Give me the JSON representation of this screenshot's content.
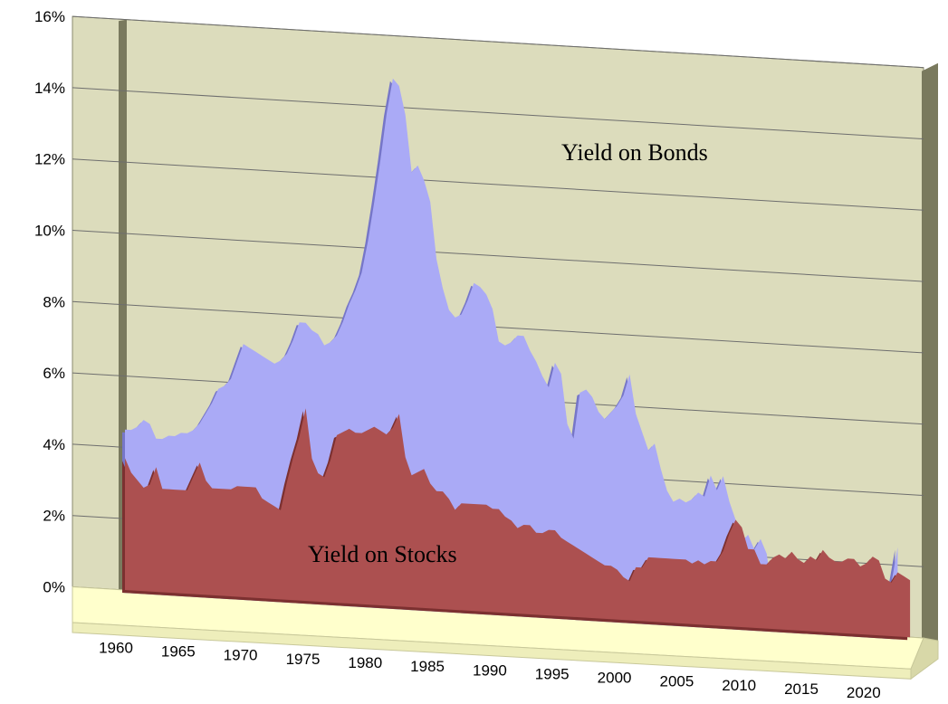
{
  "colors": {
    "wall": "#dcdcbc",
    "wall_side": "#7a7a5e",
    "floor": "#ffffcc",
    "floor_edge": "#c8c89a",
    "bonds_fill": "#aaaaf6",
    "bonds_edge": "#7676c8",
    "stocks_fill": "#ac5050",
    "stocks_edge": "#7c3030",
    "gridline": "#6e6e6e"
  },
  "chart_data": {
    "type": "area",
    "view": "3d",
    "x_label_years": [
      1960,
      1965,
      1970,
      1975,
      1980,
      1985,
      1990,
      1995,
      2000,
      2005,
      2010,
      2015,
      2020
    ],
    "ylim": [
      0,
      16
    ],
    "y_ticks": [
      0,
      2,
      4,
      6,
      8,
      10,
      12,
      14,
      16
    ],
    "y_tick_labels": [
      "0%",
      "2%",
      "4%",
      "6%",
      "8%",
      "10%",
      "12%",
      "14%",
      "16%"
    ],
    "grid": true,
    "annotations": {
      "bonds": "Yield on Bonds",
      "stocks": "Yield on Stocks"
    },
    "series": [
      {
        "key": "bonds",
        "points": [
          [
            1960.0,
            4.5
          ],
          [
            1960.5,
            4.5
          ],
          [
            1961.0,
            4.6
          ],
          [
            1961.5,
            4.8
          ],
          [
            1962.0,
            4.7
          ],
          [
            1962.5,
            4.3
          ],
          [
            1963.0,
            4.3
          ],
          [
            1963.5,
            4.4
          ],
          [
            1964.0,
            4.4
          ],
          [
            1964.5,
            4.5
          ],
          [
            1965.0,
            4.5
          ],
          [
            1965.5,
            4.6
          ],
          [
            1966.0,
            4.8
          ],
          [
            1966.5,
            5.1
          ],
          [
            1967.0,
            5.4
          ],
          [
            1967.5,
            5.8
          ],
          [
            1968.0,
            5.9
          ],
          [
            1968.5,
            6.1
          ],
          [
            1969.0,
            6.6
          ],
          [
            1969.5,
            7.1
          ],
          [
            1970.0,
            7.0
          ],
          [
            1970.5,
            6.9
          ],
          [
            1971.0,
            6.8
          ],
          [
            1971.5,
            6.7
          ],
          [
            1972.0,
            6.6
          ],
          [
            1972.5,
            6.7
          ],
          [
            1973.0,
            6.9
          ],
          [
            1973.5,
            7.3
          ],
          [
            1974.0,
            7.8
          ],
          [
            1974.5,
            7.8
          ],
          [
            1975.0,
            7.6
          ],
          [
            1975.5,
            7.5
          ],
          [
            1976.0,
            7.2
          ],
          [
            1976.5,
            7.3
          ],
          [
            1977.0,
            7.5
          ],
          [
            1977.5,
            7.9
          ],
          [
            1978.0,
            8.4
          ],
          [
            1978.5,
            8.8
          ],
          [
            1979.0,
            9.3
          ],
          [
            1979.5,
            10.2
          ],
          [
            1980.0,
            11.3
          ],
          [
            1980.5,
            12.5
          ],
          [
            1981.0,
            13.8
          ],
          [
            1981.5,
            14.8
          ],
          [
            1982.0,
            14.6
          ],
          [
            1982.5,
            13.8
          ],
          [
            1983.0,
            12.2
          ],
          [
            1983.5,
            12.4
          ],
          [
            1984.0,
            12.0
          ],
          [
            1984.5,
            11.4
          ],
          [
            1985.0,
            9.8
          ],
          [
            1985.5,
            9.0
          ],
          [
            1986.0,
            8.4
          ],
          [
            1986.5,
            8.2
          ],
          [
            1987.0,
            8.3
          ],
          [
            1987.5,
            8.7
          ],
          [
            1988.0,
            9.2
          ],
          [
            1988.5,
            9.1
          ],
          [
            1989.0,
            8.9
          ],
          [
            1989.5,
            8.5
          ],
          [
            1990.0,
            7.6
          ],
          [
            1990.5,
            7.5
          ],
          [
            1991.0,
            7.6
          ],
          [
            1991.5,
            7.8
          ],
          [
            1992.0,
            7.8
          ],
          [
            1992.5,
            7.4
          ],
          [
            1993.0,
            7.1
          ],
          [
            1993.5,
            6.7
          ],
          [
            1994.0,
            6.4
          ],
          [
            1994.5,
            7.1
          ],
          [
            1995.0,
            6.8
          ],
          [
            1995.5,
            5.4
          ],
          [
            1996.0,
            5.0
          ],
          [
            1996.5,
            6.3
          ],
          [
            1997.0,
            6.4
          ],
          [
            1997.5,
            6.2
          ],
          [
            1998.0,
            5.8
          ],
          [
            1998.5,
            5.6
          ],
          [
            1999.0,
            5.8
          ],
          [
            1999.5,
            6.0
          ],
          [
            2000.0,
            6.3
          ],
          [
            2000.5,
            6.9
          ],
          [
            2001.0,
            5.8
          ],
          [
            2001.5,
            5.3
          ],
          [
            2002.0,
            4.8
          ],
          [
            2002.5,
            5.0
          ],
          [
            2003.0,
            4.3
          ],
          [
            2003.5,
            3.7
          ],
          [
            2004.0,
            3.4
          ],
          [
            2004.5,
            3.5
          ],
          [
            2005.0,
            3.4
          ],
          [
            2005.5,
            3.5
          ],
          [
            2006.0,
            3.7
          ],
          [
            2006.5,
            3.6
          ],
          [
            2007.0,
            4.2
          ],
          [
            2007.5,
            3.8
          ],
          [
            2008.0,
            4.2
          ],
          [
            2008.5,
            3.5
          ],
          [
            2009.0,
            3.0
          ],
          [
            2009.5,
            2.4
          ],
          [
            2010.0,
            2.6
          ],
          [
            2010.5,
            2.2
          ],
          [
            2011.0,
            2.5
          ],
          [
            2011.5,
            2.1
          ],
          [
            2012.0,
            0.8
          ],
          [
            2012.5,
            1.0
          ],
          [
            2013.0,
            0.9
          ],
          [
            2013.5,
            1.4
          ],
          [
            2014.0,
            1.8
          ],
          [
            2014.5,
            1.3
          ],
          [
            2015.0,
            0.9
          ],
          [
            2015.5,
            1.2
          ],
          [
            2016.0,
            1.2
          ],
          [
            2016.5,
            0.8
          ],
          [
            2017.0,
            1.2
          ],
          [
            2017.5,
            1.1
          ],
          [
            2018.0,
            1.2
          ],
          [
            2018.5,
            1.4
          ],
          [
            2019.0,
            0.8
          ],
          [
            2019.5,
            0.7
          ],
          [
            2020.0,
            0.2
          ],
          [
            2020.5,
            0.2
          ],
          [
            2021.0,
            0.4
          ],
          [
            2021.5,
            1.5
          ],
          [
            2022.0,
            2.5
          ]
        ]
      },
      {
        "key": "stocks",
        "points": [
          [
            1960.0,
            3.7
          ],
          [
            1960.5,
            3.3
          ],
          [
            1961.0,
            3.1
          ],
          [
            1961.5,
            2.9
          ],
          [
            1962.0,
            3.0
          ],
          [
            1962.5,
            3.5
          ],
          [
            1963.0,
            2.9
          ],
          [
            1963.5,
            2.9
          ],
          [
            1964.0,
            2.9
          ],
          [
            1964.5,
            2.9
          ],
          [
            1965.0,
            2.9
          ],
          [
            1965.5,
            3.3
          ],
          [
            1966.0,
            3.7
          ],
          [
            1966.5,
            3.2
          ],
          [
            1967.0,
            3.0
          ],
          [
            1967.5,
            3.0
          ],
          [
            1968.0,
            3.0
          ],
          [
            1968.5,
            3.0
          ],
          [
            1969.0,
            3.1
          ],
          [
            1969.5,
            3.1
          ],
          [
            1970.0,
            3.1
          ],
          [
            1970.5,
            3.1
          ],
          [
            1971.0,
            2.8
          ],
          [
            1971.5,
            2.7
          ],
          [
            1972.0,
            2.6
          ],
          [
            1972.5,
            2.5
          ],
          [
            1973.0,
            3.3
          ],
          [
            1973.5,
            4.0
          ],
          [
            1974.0,
            4.6
          ],
          [
            1974.5,
            5.4
          ],
          [
            1975.0,
            4.0
          ],
          [
            1975.5,
            3.6
          ],
          [
            1976.0,
            3.5
          ],
          [
            1976.5,
            4.0
          ],
          [
            1977.0,
            4.7
          ],
          [
            1977.5,
            4.8
          ],
          [
            1978.0,
            4.9
          ],
          [
            1978.5,
            4.8
          ],
          [
            1979.0,
            4.8
          ],
          [
            1979.5,
            4.9
          ],
          [
            1980.0,
            5.0
          ],
          [
            1980.5,
            4.9
          ],
          [
            1981.0,
            4.8
          ],
          [
            1981.5,
            5.0
          ],
          [
            1982.0,
            5.4
          ],
          [
            1982.5,
            4.2
          ],
          [
            1983.0,
            3.7
          ],
          [
            1983.5,
            3.8
          ],
          [
            1984.0,
            3.9
          ],
          [
            1984.5,
            3.5
          ],
          [
            1985.0,
            3.3
          ],
          [
            1985.5,
            3.3
          ],
          [
            1986.0,
            3.1
          ],
          [
            1986.5,
            2.8
          ],
          [
            1987.0,
            3.0
          ],
          [
            1987.5,
            3.0
          ],
          [
            1988.0,
            3.0
          ],
          [
            1988.5,
            3.0
          ],
          [
            1989.0,
            3.0
          ],
          [
            1989.5,
            2.9
          ],
          [
            1990.0,
            2.9
          ],
          [
            1990.5,
            2.7
          ],
          [
            1991.0,
            2.6
          ],
          [
            1991.5,
            2.4
          ],
          [
            1992.0,
            2.5
          ],
          [
            1992.5,
            2.5
          ],
          [
            1993.0,
            2.3
          ],
          [
            1993.5,
            2.3
          ],
          [
            1994.0,
            2.4
          ],
          [
            1994.5,
            2.4
          ],
          [
            1995.0,
            2.2
          ],
          [
            1995.5,
            2.1
          ],
          [
            1996.0,
            2.0
          ],
          [
            1996.5,
            1.9
          ],
          [
            1997.0,
            1.8
          ],
          [
            1997.5,
            1.7
          ],
          [
            1998.0,
            1.6
          ],
          [
            1998.5,
            1.5
          ],
          [
            1999.0,
            1.5
          ],
          [
            1999.5,
            1.4
          ],
          [
            2000.0,
            1.2
          ],
          [
            2000.5,
            1.1
          ],
          [
            2001.0,
            1.5
          ],
          [
            2001.5,
            1.5
          ],
          [
            2002.0,
            1.8
          ],
          [
            2002.5,
            1.8
          ],
          [
            2003.0,
            1.8
          ],
          [
            2003.5,
            1.8
          ],
          [
            2004.0,
            1.8
          ],
          [
            2004.5,
            1.8
          ],
          [
            2005.0,
            1.8
          ],
          [
            2005.5,
            1.7
          ],
          [
            2006.0,
            1.8
          ],
          [
            2006.5,
            1.7
          ],
          [
            2007.0,
            1.8
          ],
          [
            2007.5,
            1.8
          ],
          [
            2008.0,
            2.1
          ],
          [
            2008.5,
            2.6
          ],
          [
            2009.0,
            3.0
          ],
          [
            2009.5,
            2.8
          ],
          [
            2010.0,
            2.2
          ],
          [
            2010.5,
            2.2
          ],
          [
            2011.0,
            1.8
          ],
          [
            2011.5,
            1.8
          ],
          [
            2012.0,
            2.0
          ],
          [
            2012.5,
            2.1
          ],
          [
            2013.0,
            2.0
          ],
          [
            2013.5,
            2.2
          ],
          [
            2014.0,
            2.0
          ],
          [
            2014.5,
            1.9
          ],
          [
            2015.0,
            2.1
          ],
          [
            2015.5,
            2.0
          ],
          [
            2016.0,
            2.3
          ],
          [
            2016.5,
            2.1
          ],
          [
            2017.0,
            2.0
          ],
          [
            2017.5,
            2.0
          ],
          [
            2018.0,
            2.1
          ],
          [
            2018.5,
            2.1
          ],
          [
            2019.0,
            1.9
          ],
          [
            2019.5,
            2.0
          ],
          [
            2020.0,
            2.2
          ],
          [
            2020.5,
            2.1
          ],
          [
            2021.0,
            1.6
          ],
          [
            2021.5,
            1.5
          ],
          [
            2022.0,
            1.8
          ],
          [
            2022.5,
            1.7
          ],
          [
            2023.0,
            1.6
          ]
        ]
      }
    ]
  }
}
